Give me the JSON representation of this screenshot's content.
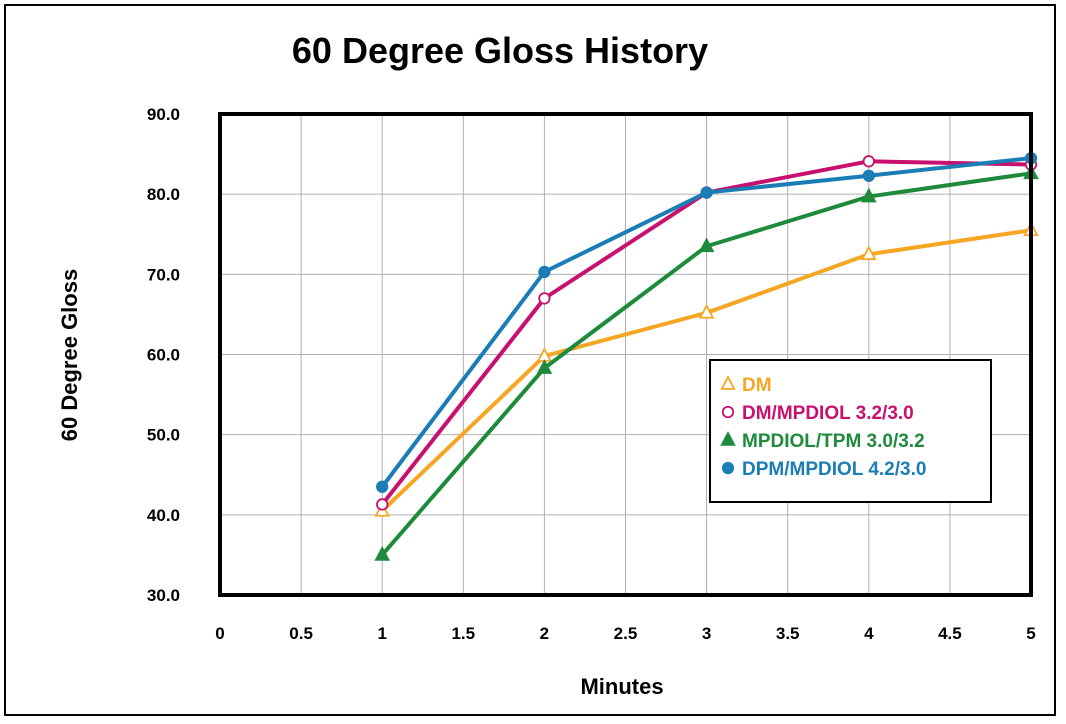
{
  "chart_data": {
    "type": "line",
    "title": "60 Degree Gloss History",
    "xlabel": "Minutes",
    "ylabel": "60 Degree Gloss",
    "xlim": [
      0,
      5
    ],
    "ylim": [
      30,
      90
    ],
    "x_ticks": [
      "0",
      "0.5",
      "1",
      "1.5",
      "2",
      "2.5",
      "3",
      "3.5",
      "4",
      "4.5",
      "5"
    ],
    "y_ticks": [
      "30.0",
      "40.0",
      "50.0",
      "60.0",
      "70.0",
      "80.0",
      "90.0"
    ],
    "grid": true,
    "legend_position": "center-right",
    "x": [
      1,
      2,
      3,
      4,
      5
    ],
    "series": [
      {
        "name": "DM",
        "marker": "open-triangle",
        "color": "#F5A623",
        "values": [
          40.5,
          59.8,
          65.2,
          72.5,
          75.5
        ]
      },
      {
        "name": "DM/MPDIOL 3.2/3.0",
        "marker": "open-circle",
        "color": "#C8106E",
        "values": [
          41.3,
          67.0,
          80.2,
          84.1,
          83.7
        ]
      },
      {
        "name": "MPDIOL/TPM 3.0/3.2",
        "marker": "filled-triangle",
        "color": "#1E8B3C",
        "values": [
          35.0,
          58.3,
          73.5,
          79.7,
          82.6
        ]
      },
      {
        "name": "DPM/MPDIOL 4.2/3.0",
        "marker": "filled-circle",
        "color": "#1A7DB5",
        "values": [
          43.5,
          70.3,
          80.2,
          82.3,
          84.5
        ]
      }
    ]
  }
}
